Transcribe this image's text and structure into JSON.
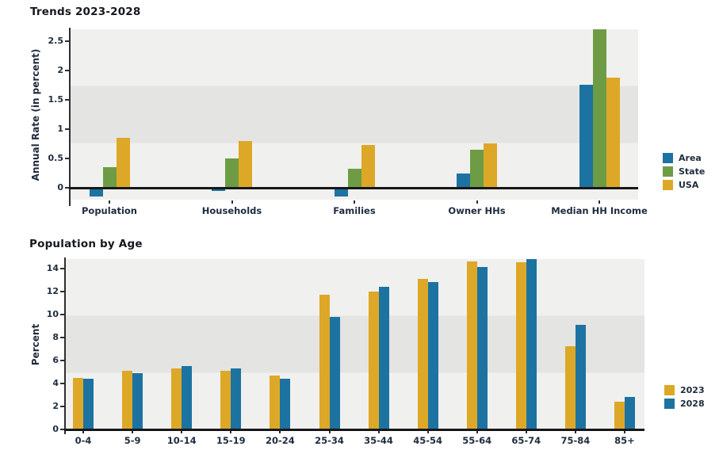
{
  "colors": {
    "blue": "#1c73a1",
    "green": "#6d9c45",
    "gold": "#dda827",
    "stripe_light": "#f0f0ef",
    "stripe_dark": "#e4e4e2",
    "axis": "#2e2e33",
    "baseline": "#17171a",
    "text": "#1f2c3d",
    "title_text": "#15181d"
  },
  "chart_data": [
    {
      "type": "bar",
      "title": "Trends 2023-2028",
      "ylabel": "Annual Rate (in percent)",
      "xlabel": "",
      "categories": [
        "Population",
        "Households",
        "Families",
        "Owner HHs",
        "Median HH Income"
      ],
      "series": [
        {
          "name": "Area",
          "color_key": "blue",
          "values": [
            -0.15,
            -0.05,
            -0.15,
            0.25,
            1.75
          ]
        },
        {
          "name": "State",
          "color_key": "green",
          "values": [
            0.35,
            0.5,
            0.32,
            0.65,
            2.7
          ]
        },
        {
          "name": "USA",
          "color_key": "gold",
          "values": [
            0.85,
            0.8,
            0.73,
            0.76,
            1.88
          ]
        }
      ],
      "ylim": [
        -0.2,
        2.7
      ],
      "yticks": [
        0,
        0.5,
        1,
        1.5,
        2,
        2.5
      ],
      "ytick_labels": [
        "0",
        "0.5",
        "1",
        "1.5",
        "2",
        "2.5"
      ],
      "grid": false,
      "background_stripes": 3,
      "legend_position": "right"
    },
    {
      "type": "bar",
      "title": "Population by Age",
      "ylabel": "Percent",
      "xlabel": "",
      "categories": [
        "0-4",
        "5-9",
        "10-14",
        "15-19",
        "20-24",
        "25-34",
        "35-44",
        "45-54",
        "55-64",
        "65-74",
        "75-84",
        "85+"
      ],
      "series": [
        {
          "name": "2023",
          "color_key": "gold",
          "values": [
            4.5,
            5.1,
            5.3,
            5.1,
            4.7,
            11.7,
            12.0,
            13.1,
            14.6,
            14.5,
            7.2,
            2.4
          ]
        },
        {
          "name": "2028",
          "color_key": "blue",
          "values": [
            4.4,
            4.9,
            5.5,
            5.3,
            4.4,
            9.8,
            12.4,
            12.8,
            14.1,
            14.8,
            9.1,
            2.8
          ]
        }
      ],
      "ylim": [
        0,
        14.8
      ],
      "yticks": [
        0,
        2,
        4,
        6,
        8,
        10,
        12,
        14
      ],
      "ytick_labels": [
        "0",
        "2",
        "4",
        "6",
        "8",
        "10",
        "12",
        "14"
      ],
      "grid": false,
      "background_stripes": 3,
      "legend_position": "right"
    }
  ]
}
